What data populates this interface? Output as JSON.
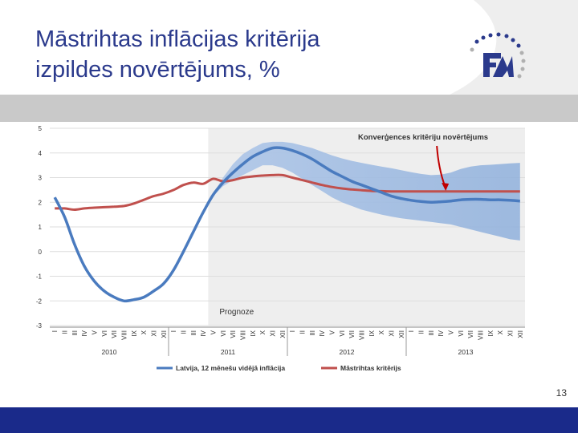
{
  "slide": {
    "title_line1": "Māstrihtas inflācijas kritērija",
    "title_line2": "izpildes novērtējums, %",
    "page_number": "13",
    "logo_text": "FM"
  },
  "colors": {
    "title": "#2b3a8c",
    "footer": "#1a2a8a",
    "latvia_line": "#4a7bbf",
    "maastricht_line": "#c0504d",
    "forecast_band": "#aec6e8",
    "annotation_arrow": "#c00000"
  },
  "chart_data": {
    "type": "line",
    "title": "",
    "xlabel": "",
    "ylabel": "",
    "ylim": [
      -3,
      5
    ],
    "y_ticks": [
      "5",
      "4",
      "3",
      "2",
      "1",
      "0",
      "-1",
      "-2",
      "-3"
    ],
    "month_labels": [
      "I",
      "II",
      "III",
      "IV",
      "V",
      "VI",
      "VII",
      "VIII",
      "IX",
      "X",
      "XI",
      "XII"
    ],
    "years": [
      "2010",
      "2011",
      "2012",
      "2013"
    ],
    "forecast_label": "Prognoze",
    "forecast_start_month": 16,
    "annotation": "Konverģences kritēriju novērtējums",
    "annotation_point": [
      39,
      2.4
    ],
    "legend": [
      "Latvija, 12 mēnešu vidējā inflācija",
      "Māstrihtas kritērijs"
    ],
    "series": [
      {
        "name": "Latvija, 12 mēnešu vidējā inflācija",
        "points": [
          [
            0,
            2.2
          ],
          [
            1,
            1.4
          ],
          [
            2,
            0.3
          ],
          [
            3,
            -0.6
          ],
          [
            4,
            -1.2
          ],
          [
            5,
            -1.6
          ],
          [
            6,
            -1.85
          ],
          [
            7,
            -2.0
          ],
          [
            8,
            -1.95
          ],
          [
            9,
            -1.85
          ],
          [
            10,
            -1.6
          ],
          [
            11,
            -1.3
          ],
          [
            12,
            -0.75
          ],
          [
            13,
            0.0
          ],
          [
            14,
            0.8
          ],
          [
            15,
            1.6
          ],
          [
            16,
            2.3
          ],
          [
            17,
            2.8
          ],
          [
            18,
            3.2
          ],
          [
            19,
            3.55
          ],
          [
            20,
            3.85
          ],
          [
            21,
            4.05
          ],
          [
            22,
            4.2
          ],
          [
            23,
            4.2
          ],
          [
            24,
            4.1
          ],
          [
            25,
            3.95
          ],
          [
            26,
            3.75
          ],
          [
            27,
            3.5
          ],
          [
            28,
            3.25
          ],
          [
            29,
            3.05
          ],
          [
            30,
            2.85
          ],
          [
            31,
            2.7
          ],
          [
            32,
            2.55
          ],
          [
            33,
            2.4
          ],
          [
            34,
            2.25
          ],
          [
            35,
            2.15
          ],
          [
            36,
            2.08
          ],
          [
            37,
            2.03
          ],
          [
            38,
            2.0
          ],
          [
            39,
            2.02
          ],
          [
            40,
            2.05
          ],
          [
            41,
            2.1
          ],
          [
            42,
            2.12
          ],
          [
            43,
            2.12
          ],
          [
            44,
            2.1
          ],
          [
            45,
            2.1
          ],
          [
            46,
            2.08
          ],
          [
            47,
            2.05
          ]
        ]
      },
      {
        "name": "Māstrihtas kritērijs",
        "points": [
          [
            0,
            1.75
          ],
          [
            1,
            1.75
          ],
          [
            2,
            1.7
          ],
          [
            3,
            1.75
          ],
          [
            4,
            1.78
          ],
          [
            5,
            1.8
          ],
          [
            6,
            1.82
          ],
          [
            7,
            1.85
          ],
          [
            8,
            1.95
          ],
          [
            9,
            2.1
          ],
          [
            10,
            2.25
          ],
          [
            11,
            2.35
          ],
          [
            12,
            2.5
          ],
          [
            13,
            2.7
          ],
          [
            14,
            2.8
          ],
          [
            15,
            2.75
          ],
          [
            16,
            2.95
          ],
          [
            17,
            2.85
          ],
          [
            18,
            2.9
          ],
          [
            19,
            3.0
          ],
          [
            20,
            3.05
          ],
          [
            21,
            3.08
          ],
          [
            22,
            3.1
          ],
          [
            23,
            3.1
          ],
          [
            24,
            3.0
          ],
          [
            25,
            2.9
          ],
          [
            26,
            2.8
          ],
          [
            27,
            2.7
          ],
          [
            28,
            2.62
          ],
          [
            29,
            2.56
          ],
          [
            30,
            2.52
          ],
          [
            31,
            2.49
          ],
          [
            32,
            2.46
          ],
          [
            33,
            2.45
          ],
          [
            34,
            2.44
          ],
          [
            35,
            2.44
          ],
          [
            36,
            2.44
          ],
          [
            37,
            2.44
          ],
          [
            38,
            2.44
          ],
          [
            39,
            2.44
          ],
          [
            40,
            2.44
          ],
          [
            41,
            2.44
          ],
          [
            42,
            2.44
          ],
          [
            43,
            2.44
          ],
          [
            44,
            2.44
          ],
          [
            45,
            2.44
          ],
          [
            46,
            2.44
          ],
          [
            47,
            2.44
          ]
        ]
      }
    ],
    "band": {
      "name": "forecast uncertainty",
      "upper": [
        [
          16,
          2.35
        ],
        [
          17,
          3.0
        ],
        [
          18,
          3.55
        ],
        [
          19,
          3.95
        ],
        [
          20,
          4.2
        ],
        [
          21,
          4.4
        ],
        [
          22,
          4.45
        ],
        [
          23,
          4.45
        ],
        [
          24,
          4.4
        ],
        [
          25,
          4.3
        ],
        [
          26,
          4.2
        ],
        [
          27,
          4.05
        ],
        [
          28,
          3.9
        ],
        [
          29,
          3.78
        ],
        [
          30,
          3.68
        ],
        [
          31,
          3.6
        ],
        [
          32,
          3.52
        ],
        [
          33,
          3.45
        ],
        [
          34,
          3.38
        ],
        [
          35,
          3.3
        ],
        [
          36,
          3.22
        ],
        [
          37,
          3.15
        ],
        [
          38,
          3.1
        ],
        [
          39,
          3.12
        ],
        [
          40,
          3.2
        ],
        [
          41,
          3.35
        ],
        [
          42,
          3.45
        ],
        [
          43,
          3.5
        ],
        [
          44,
          3.52
        ],
        [
          45,
          3.55
        ],
        [
          46,
          3.58
        ],
        [
          47,
          3.6
        ]
      ],
      "lower": [
        [
          16,
          2.25
        ],
        [
          17,
          2.65
        ],
        [
          18,
          2.9
        ],
        [
          19,
          3.1
        ],
        [
          20,
          3.3
        ],
        [
          21,
          3.5
        ],
        [
          22,
          3.5
        ],
        [
          23,
          3.4
        ],
        [
          24,
          3.2
        ],
        [
          25,
          2.95
        ],
        [
          26,
          2.7
        ],
        [
          27,
          2.45
        ],
        [
          28,
          2.2
        ],
        [
          29,
          2.0
        ],
        [
          30,
          1.85
        ],
        [
          31,
          1.7
        ],
        [
          32,
          1.6
        ],
        [
          33,
          1.5
        ],
        [
          34,
          1.42
        ],
        [
          35,
          1.35
        ],
        [
          36,
          1.3
        ],
        [
          37,
          1.25
        ],
        [
          38,
          1.2
        ],
        [
          39,
          1.15
        ],
        [
          40,
          1.1
        ],
        [
          41,
          1.0
        ],
        [
          42,
          0.9
        ],
        [
          43,
          0.8
        ],
        [
          44,
          0.7
        ],
        [
          45,
          0.6
        ],
        [
          46,
          0.5
        ],
        [
          47,
          0.45
        ]
      ]
    }
  }
}
